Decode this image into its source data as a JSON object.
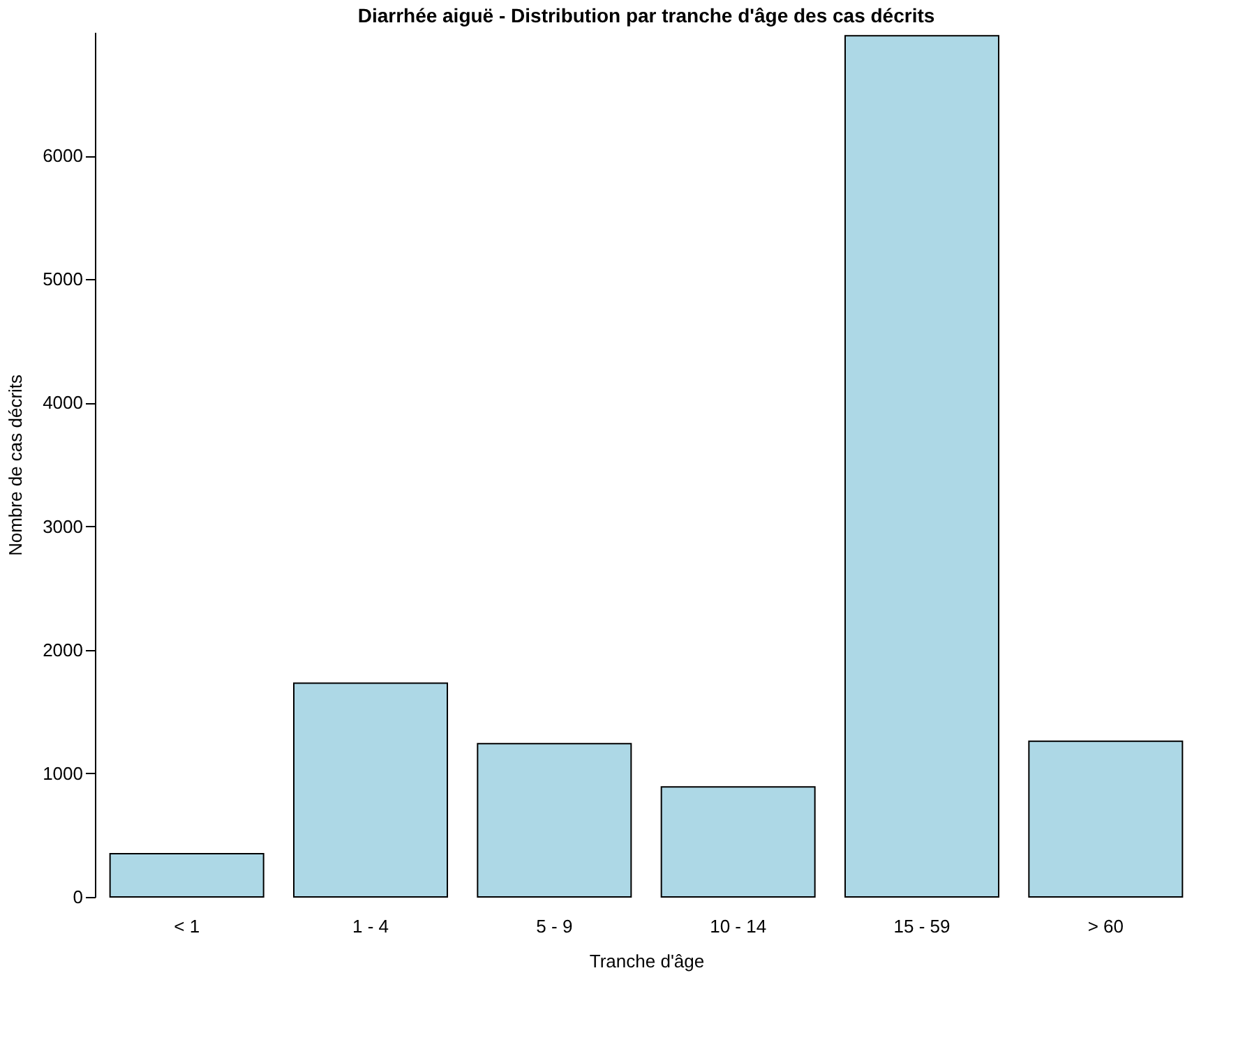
{
  "chart_data": {
    "type": "bar",
    "title": "Diarrhée aiguë - Distribution par tranche d'âge des cas décrits",
    "xlabel": "Tranche d'âge",
    "ylabel": "Nombre de cas décrits",
    "categories": [
      "< 1",
      "1 - 4",
      "5 - 9",
      "10 - 14",
      "15 - 59",
      "> 60"
    ],
    "values": [
      350,
      1730,
      1240,
      890,
      6970,
      1260
    ],
    "color": "#add8e6",
    "ylim": [
      0,
      7000
    ],
    "yticks": [
      0,
      1000,
      2000,
      3000,
      4000,
      5000,
      6000
    ],
    "grid": false
  }
}
